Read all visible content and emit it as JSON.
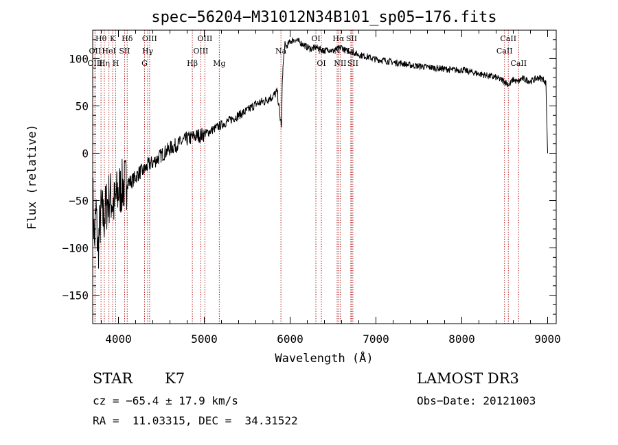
{
  "chart_data": {
    "type": "line",
    "title": "spec−56204−M31012N34B101_sp05−176.fits",
    "xlabel": "Wavelength (Å)",
    "ylabel": "Flux (relative)",
    "xlim": [
      3700,
      9100
    ],
    "ylim": [
      -180,
      130
    ],
    "x_ticks": [
      4000,
      5000,
      6000,
      7000,
      8000,
      9000
    ],
    "x_tick_labels": [
      "4000",
      "5000",
      "6000",
      "7000",
      "8000",
      "9000"
    ],
    "y_ticks": [
      -150,
      -100,
      -50,
      0,
      50,
      100
    ],
    "y_tick_labels": [
      "−150",
      "−100",
      "−50",
      "0",
      "50",
      "100"
    ],
    "series": [
      {
        "name": "spectrum",
        "x": [
          3700,
          3720,
          3740,
          3760,
          3780,
          3800,
          3830,
          3860,
          3900,
          3950,
          4000,
          4050,
          4100,
          4150,
          4200,
          4250,
          4300,
          4350,
          4400,
          4500,
          4600,
          4700,
          4800,
          4900,
          5000,
          5100,
          5200,
          5300,
          5400,
          5500,
          5600,
          5700,
          5750,
          5800,
          5850,
          5880,
          5900,
          5905,
          5910,
          5920,
          5930,
          5940,
          5950,
          6000,
          6050,
          6100,
          6150,
          6200,
          6250,
          6300,
          6350,
          6400,
          6450,
          6500,
          6550,
          6600,
          6650,
          6700,
          6750,
          6800,
          6900,
          7000,
          7100,
          7200,
          7300,
          7400,
          7500,
          7600,
          7700,
          7800,
          7900,
          8000,
          8100,
          8200,
          8300,
          8400,
          8500,
          8550,
          8600,
          8650,
          8700,
          8800,
          8900,
          8950,
          8980,
          9000
        ],
        "y": [
          -40,
          -95,
          -60,
          -105,
          -80,
          -60,
          -70,
          -55,
          -45,
          -55,
          -40,
          -35,
          -30,
          -30,
          -25,
          -20,
          -18,
          -12,
          -10,
          -2,
          5,
          10,
          15,
          18,
          20,
          25,
          30,
          35,
          40,
          45,
          52,
          55,
          58,
          60,
          65,
          40,
          28,
          55,
          80,
          95,
          105,
          115,
          112,
          118,
          120,
          118,
          115,
          112,
          110,
          112,
          110,
          108,
          110,
          108,
          110,
          112,
          108,
          108,
          106,
          104,
          102,
          99,
          98,
          96,
          95,
          93,
          92,
          91,
          90,
          89,
          88,
          88,
          86,
          84,
          82,
          80,
          76,
          72,
          78,
          75,
          79,
          76,
          80,
          78,
          74,
          0
        ]
      }
    ],
    "lines": [
      {
        "label": "Hθ",
        "x": 3797,
        "row": 0
      },
      {
        "label": "OII",
        "x": 3727,
        "row": 1
      },
      {
        "label": "OIII",
        "x": 3727,
        "row": 2
      },
      {
        "label": "Hη",
        "x": 3835,
        "row": 2
      },
      {
        "label": "K",
        "x": 3933,
        "row": 0
      },
      {
        "label": "HeI",
        "x": 3889,
        "row": 1
      },
      {
        "label": "H",
        "x": 3968,
        "row": 2
      },
      {
        "label": "Hδ",
        "x": 4102,
        "row": 0
      },
      {
        "label": "SII",
        "x": 4072,
        "row": 1
      },
      {
        "label": "OIII",
        "x": 4363,
        "row": 0
      },
      {
        "label": "Hγ",
        "x": 4340,
        "row": 1
      },
      {
        "label": "G",
        "x": 4304,
        "row": 2
      },
      {
        "label": "OIII",
        "x": 5007,
        "row": 0
      },
      {
        "label": "OIII",
        "x": 4959,
        "row": 1
      },
      {
        "label": "Hβ",
        "x": 4861,
        "row": 2
      },
      {
        "label": "Mg",
        "x": 5175,
        "row": 2
      },
      {
        "label": "Na",
        "x": 5893,
        "row": 1
      },
      {
        "label": "OI",
        "x": 6300,
        "row": 0
      },
      {
        "label": "N",
        "x": 6364,
        "row": 1
      },
      {
        "label": "OI",
        "x": 6364,
        "row": 2
      },
      {
        "label": "Hα",
        "x": 6563,
        "row": 0
      },
      {
        "label": "N",
        "x": 6548,
        "row": 1
      },
      {
        "label": "NII",
        "x": 6583,
        "row": 2
      },
      {
        "label": "SII",
        "x": 6716,
        "row": 0
      },
      {
        "label": "Li",
        "x": 6707,
        "row": 1
      },
      {
        "label": "SII",
        "x": 6731,
        "row": 2
      },
      {
        "label": "CaII",
        "x": 8542,
        "row": 0
      },
      {
        "label": "CaII",
        "x": 8498,
        "row": 1
      },
      {
        "label": "CaII",
        "x": 8662,
        "row": 2
      }
    ]
  },
  "info": {
    "class_label": "STAR",
    "subclass": "K7",
    "cz": "cz = −65.4 ± 17.9 km/s",
    "radec": "RA =  11.03315, DEC =  34.31522",
    "survey": "LAMOST DR3",
    "obs_date": "Obs−Date: 20121003"
  },
  "colors": {
    "line_markers": "#b22222",
    "spectrum": "#000000",
    "axes": "#000000"
  }
}
